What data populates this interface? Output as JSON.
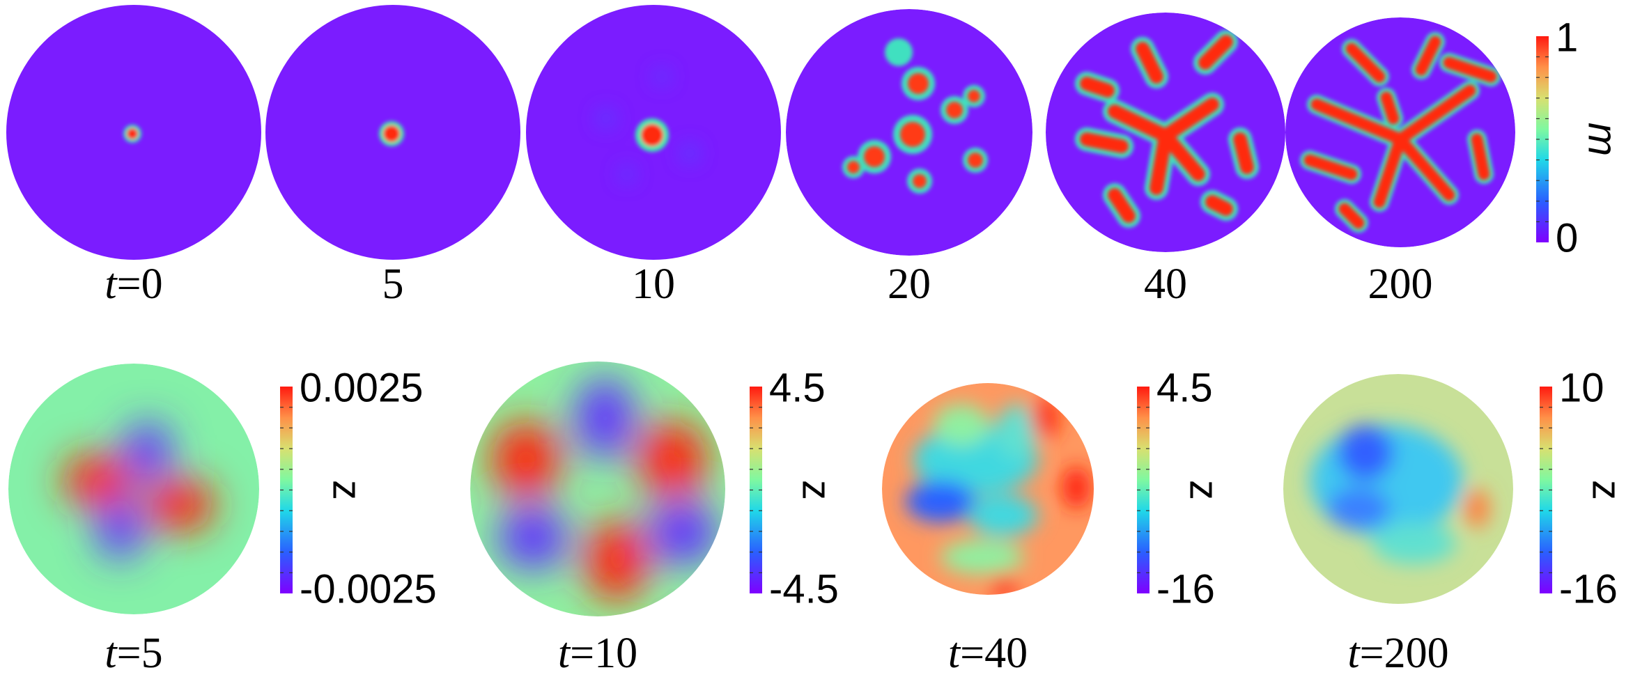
{
  "top_row": {
    "panels": [
      {
        "label_prefix": "t",
        "label": "=0"
      },
      {
        "label": "5"
      },
      {
        "label": "10"
      },
      {
        "label": "20"
      },
      {
        "label": "40"
      },
      {
        "label": "200"
      }
    ],
    "colorbar": {
      "max": "1",
      "min": "0",
      "label": "m"
    }
  },
  "bottom_row": {
    "panels": [
      {
        "label_prefix": "t",
        "label": "=5",
        "colorbar": {
          "max": "0.0025",
          "min": "-0.0025",
          "label": "z"
        }
      },
      {
        "label_prefix": "t",
        "label": "=10",
        "colorbar": {
          "max": "4.5",
          "min": "-4.5",
          "label": "z"
        }
      },
      {
        "label_prefix": "t",
        "label": "=40",
        "colorbar": {
          "max": "4.5",
          "min": "-16",
          "label": "z"
        }
      },
      {
        "label_prefix": "t",
        "label": "=200",
        "colorbar": {
          "max": "10",
          "min": "-16",
          "label": "z"
        }
      }
    ]
  }
}
